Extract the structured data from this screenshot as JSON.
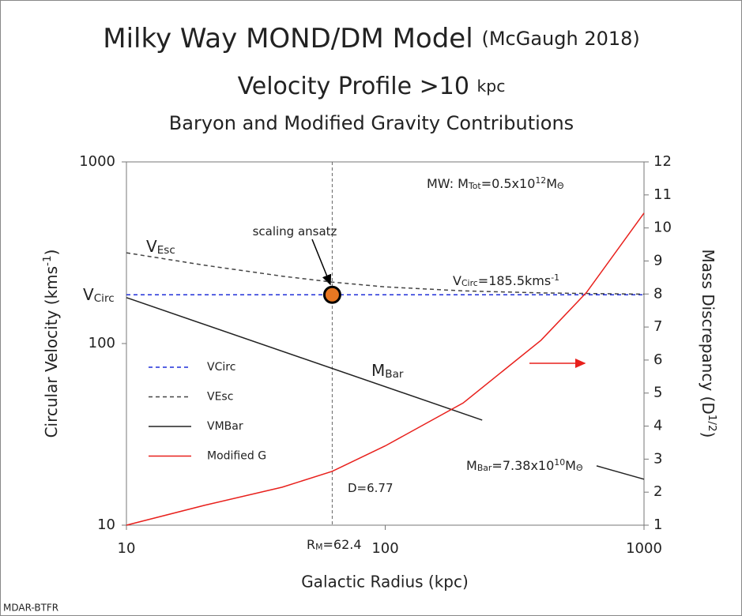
{
  "chart_data": {
    "type": "line",
    "title": "Milky Way MOND/DM Model",
    "title_note": "(McGaugh 2018)",
    "subtitle": [
      {
        "text": "Velocity Profile >10 "
      },
      {
        "text": "kpc",
        "small": true
      }
    ],
    "subtitle2": "Baryon and Modified Gravity Contributions",
    "xlabel": "Galactic Radius (kpc)",
    "ylabel": [
      {
        "text": "Circular Velocity (kms"
      },
      {
        "text": "-1",
        "shift": "sup"
      },
      {
        "text": ")"
      }
    ],
    "y2label": [
      {
        "text": "Mass Discrepancy (D"
      },
      {
        "text": "1/2",
        "shift": "sup"
      },
      {
        "text": ")"
      }
    ],
    "footer": "MDAR-BTFR",
    "xscale": "log",
    "yscale": "log",
    "xlim": [
      10,
      1000
    ],
    "xticks": [
      10,
      100,
      1000
    ],
    "ylim": [
      10,
      1000
    ],
    "yticks": [
      10,
      100,
      1000
    ],
    "y2lim": [
      1,
      12
    ],
    "y2ticks": [
      1,
      2,
      3,
      4,
      5,
      6,
      7,
      8,
      9,
      10,
      11,
      12
    ],
    "series": [
      {
        "name": "VCirc",
        "color": "#1f2fd8",
        "dash": true,
        "x": [
          10,
          1000
        ],
        "values": [
          185.5,
          185.5
        ]
      },
      {
        "name": "VEsc",
        "color": "#444444",
        "dash": true,
        "x": [
          10,
          20,
          40,
          62.4,
          100,
          200,
          400,
          1000
        ],
        "values": [
          316,
          270,
          235,
          218,
          205,
          195,
          190,
          187
        ]
      },
      {
        "name": "VMBar",
        "color": "#222222",
        "dash": false,
        "x": [
          10,
          237,
          400,
          656,
          1000
        ],
        "values": [
          179,
          37.9,
          null,
          21.2,
          17.9
        ]
      },
      {
        "name": "Modified G",
        "color": "#e8201c",
        "dash": false,
        "axis": "y2",
        "x": [
          10,
          20,
          40,
          62.4,
          100,
          200,
          400,
          600,
          1000
        ],
        "values": [
          1,
          1.6,
          2.15,
          2.63,
          3.4,
          4.7,
          6.6,
          8.05,
          10.45
        ]
      }
    ],
    "marker": {
      "x": 62.4,
      "value": 185.5,
      "color": "#e87722"
    },
    "annotations": [
      {
        "parts": [
          {
            "text": "MW: M"
          },
          {
            "text": "Tot",
            "shift": "sub"
          },
          {
            "text": "=0.5x10"
          },
          {
            "text": "12",
            "shift": "sup"
          },
          {
            "text": "M"
          },
          {
            "text": "Θ",
            "shift": "sub"
          }
        ]
      },
      {
        "parts": [
          {
            "text": "scaling ansatz"
          }
        ]
      },
      {
        "parts": [
          {
            "text": "V"
          },
          {
            "text": "Esc",
            "shift": "sub"
          }
        ]
      },
      {
        "parts": [
          {
            "text": "V"
          },
          {
            "text": "Circ",
            "shift": "sub"
          }
        ]
      },
      {
        "parts": [
          {
            "text": "V"
          },
          {
            "text": "Circ",
            "shift": "sub"
          },
          {
            "text": "=185.5kms"
          },
          {
            "text": "-1",
            "shift": "sup"
          }
        ]
      },
      {
        "parts": [
          {
            "text": "M"
          },
          {
            "text": "Bar",
            "shift": "sub"
          }
        ]
      },
      {
        "parts": [
          {
            "text": "M"
          },
          {
            "text": "Bar",
            "shift": "sub"
          },
          {
            "text": "=7.38x10"
          },
          {
            "text": "10",
            "shift": "sup"
          },
          {
            "text": "M"
          },
          {
            "text": "Θ",
            "shift": "sub"
          }
        ]
      },
      {
        "parts": [
          {
            "text": "D=6.77"
          }
        ]
      },
      {
        "parts": [
          {
            "text": "R"
          },
          {
            "text": "M",
            "shift": "sub"
          },
          {
            "text": "=62.4"
          }
        ]
      }
    ]
  }
}
